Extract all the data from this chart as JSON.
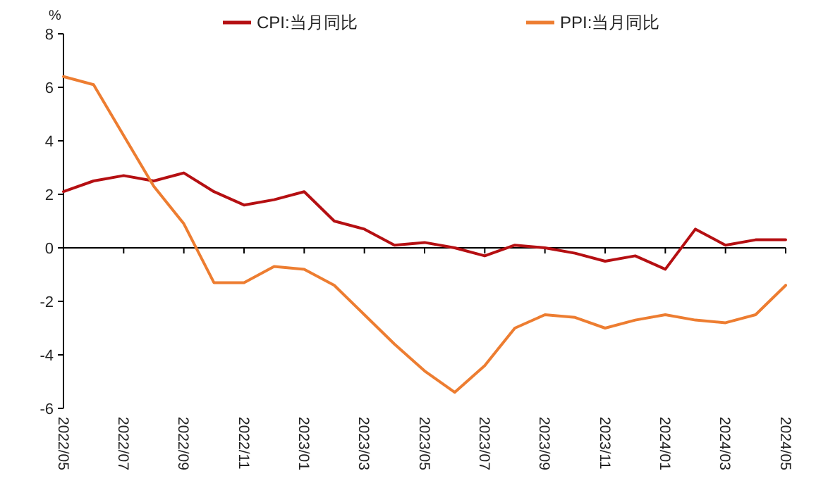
{
  "chart_data": {
    "type": "line",
    "ylabel": "%",
    "categories": [
      "2022/05",
      null,
      "2022/07",
      null,
      "2022/09",
      null,
      "2022/11",
      null,
      "2023/01",
      null,
      "2023/03",
      null,
      "2023/05",
      null,
      "2023/07",
      null,
      "2023/09",
      null,
      "2023/11",
      null,
      "2024/01",
      null,
      "2024/03",
      null,
      "2024/05"
    ],
    "series": [
      {
        "name": "CPI:当月同比",
        "color": "#b50f12",
        "values": [
          2.1,
          2.5,
          2.7,
          2.5,
          2.8,
          2.1,
          1.6,
          1.8,
          2.1,
          1.0,
          0.7,
          0.1,
          0.2,
          0.0,
          -0.3,
          0.1,
          0.0,
          -0.2,
          -0.5,
          -0.3,
          -0.8,
          0.7,
          0.1,
          0.3,
          0.3
        ]
      },
      {
        "name": "PPI:当月同比",
        "color": "#ed7d31",
        "values": [
          6.4,
          6.1,
          4.2,
          2.3,
          0.9,
          -1.3,
          -1.3,
          -0.7,
          -0.8,
          -1.4,
          -2.5,
          -3.6,
          -4.6,
          -5.4,
          -4.4,
          -3.0,
          -2.5,
          -2.6,
          -3.0,
          -2.7,
          -2.5,
          -2.7,
          -2.8,
          -2.5,
          -1.4
        ]
      }
    ],
    "ylim": [
      -6,
      8
    ],
    "yticks": [
      -6,
      -4,
      -2,
      0,
      2,
      4,
      6,
      8
    ],
    "legend": "top",
    "marker": "none",
    "line_style": "solid"
  }
}
